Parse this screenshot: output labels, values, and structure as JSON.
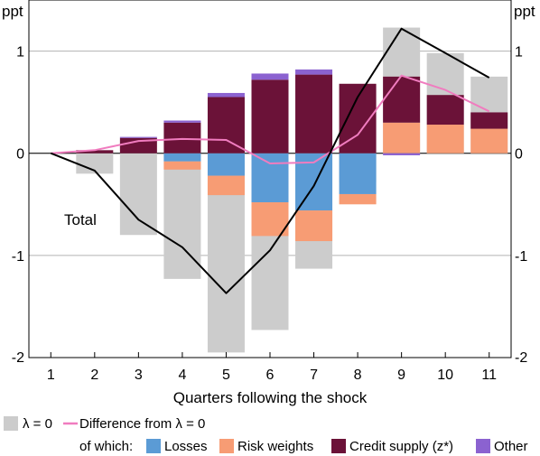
{
  "chart_data": {
    "type": "bar",
    "stacked": true,
    "xlabel": "Quarters following the shock",
    "y_unit_left": "ppt",
    "y_unit_right": "ppt",
    "ylim": [
      -2,
      1.5
    ],
    "yticks": [
      1,
      0,
      -1,
      -2
    ],
    "ytick_labels": [
      "1",
      "0",
      "-1",
      "-2"
    ],
    "grid": true,
    "categories": [
      "1",
      "2",
      "3",
      "4",
      "5",
      "6",
      "7",
      "8",
      "9",
      "10",
      "11"
    ],
    "lambda0": {
      "name": "λ = 0",
      "color": "#cccccc",
      "values": [
        0,
        -0.2,
        -0.8,
        -1.23,
        -1.95,
        -1.73,
        -1.13,
        -0.28,
        1.23,
        0.98,
        0.75
      ]
    },
    "components_prefix": "of which:",
    "components": [
      {
        "name": "Losses",
        "color": "#5b9bd5",
        "values": [
          0,
          0,
          0,
          -0.08,
          -0.22,
          -0.48,
          -0.56,
          -0.4,
          0,
          0,
          0
        ]
      },
      {
        "name": "Risk weights",
        "color": "#f79c74",
        "values": [
          0,
          0,
          0,
          -0.08,
          -0.19,
          -0.33,
          -0.3,
          -0.1,
          0.3,
          0.28,
          0.24
        ]
      },
      {
        "name": "Credit supply (z*)",
        "color": "#6b1238",
        "values": [
          0,
          0.03,
          0.15,
          0.3,
          0.55,
          0.72,
          0.77,
          0.68,
          0.45,
          0.29,
          0.16
        ]
      },
      {
        "name": "Other",
        "color": "#8b62d0",
        "values": [
          0,
          0,
          0.01,
          0.02,
          0.04,
          0.06,
          0.05,
          0,
          -0.02,
          0,
          0
        ]
      }
    ],
    "lines": [
      {
        "name": "Total",
        "color": "#000000",
        "values": [
          0,
          -0.17,
          -0.65,
          -0.92,
          -1.37,
          -0.95,
          -0.32,
          0.55,
          1.22,
          0.98,
          0.74
        ]
      },
      {
        "name": "Difference from λ = 0",
        "color": "#f07cbf",
        "values": [
          0,
          0.03,
          0.12,
          0.14,
          0.13,
          -0.1,
          -0.09,
          0.18,
          0.76,
          0.62,
          0.41
        ]
      }
    ],
    "annotations": [
      {
        "text": "Total"
      }
    ]
  },
  "legend": {
    "lambda0": "λ = 0",
    "difference": "Difference from λ = 0",
    "prefix": "of which:",
    "losses": "Losses",
    "risk": "Risk weights",
    "credit": "Credit supply (z*)",
    "other": "Other"
  }
}
